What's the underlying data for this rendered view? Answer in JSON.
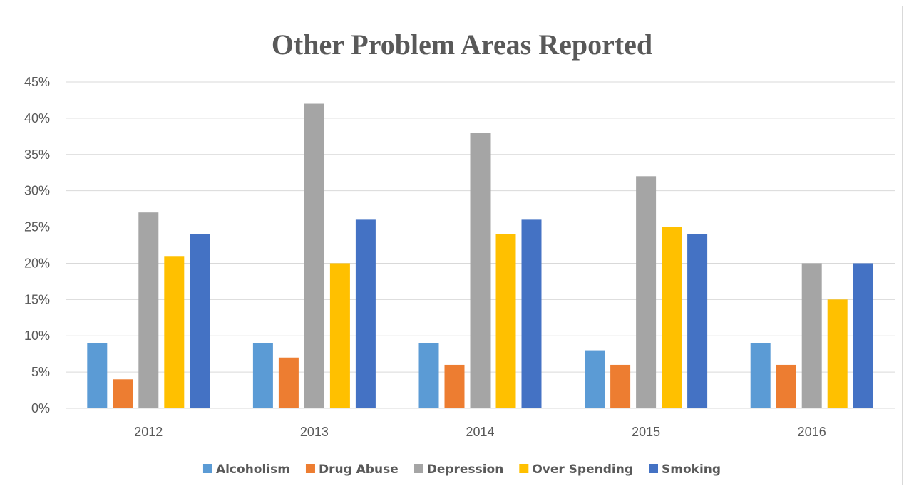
{
  "chart_data": {
    "type": "bar",
    "title": "Other Problem Areas Reported",
    "xlabel": "",
    "ylabel": "",
    "categories": [
      "2012",
      "2013",
      "2014",
      "2015",
      "2016"
    ],
    "ylim": [
      0,
      45
    ],
    "yticks": [
      "0%",
      "5%",
      "10%",
      "15%",
      "20%",
      "25%",
      "30%",
      "35%",
      "40%",
      "45%"
    ],
    "grid": true,
    "legend_position": "bottom",
    "series": [
      {
        "name": "Alcoholism",
        "color": "#5b9bd5",
        "values": [
          9,
          9,
          9,
          8,
          9
        ]
      },
      {
        "name": "Drug Abuse",
        "color": "#ed7d31",
        "values": [
          4,
          7,
          6,
          6,
          6
        ]
      },
      {
        "name": "Depression",
        "color": "#a5a5a5",
        "values": [
          27,
          42,
          38,
          32,
          20
        ]
      },
      {
        "name": "Over Spending",
        "color": "#ffc000",
        "values": [
          21,
          20,
          24,
          25,
          15
        ]
      },
      {
        "name": "Smoking",
        "color": "#4472c4",
        "values": [
          24,
          26,
          26,
          24,
          20
        ]
      }
    ]
  }
}
